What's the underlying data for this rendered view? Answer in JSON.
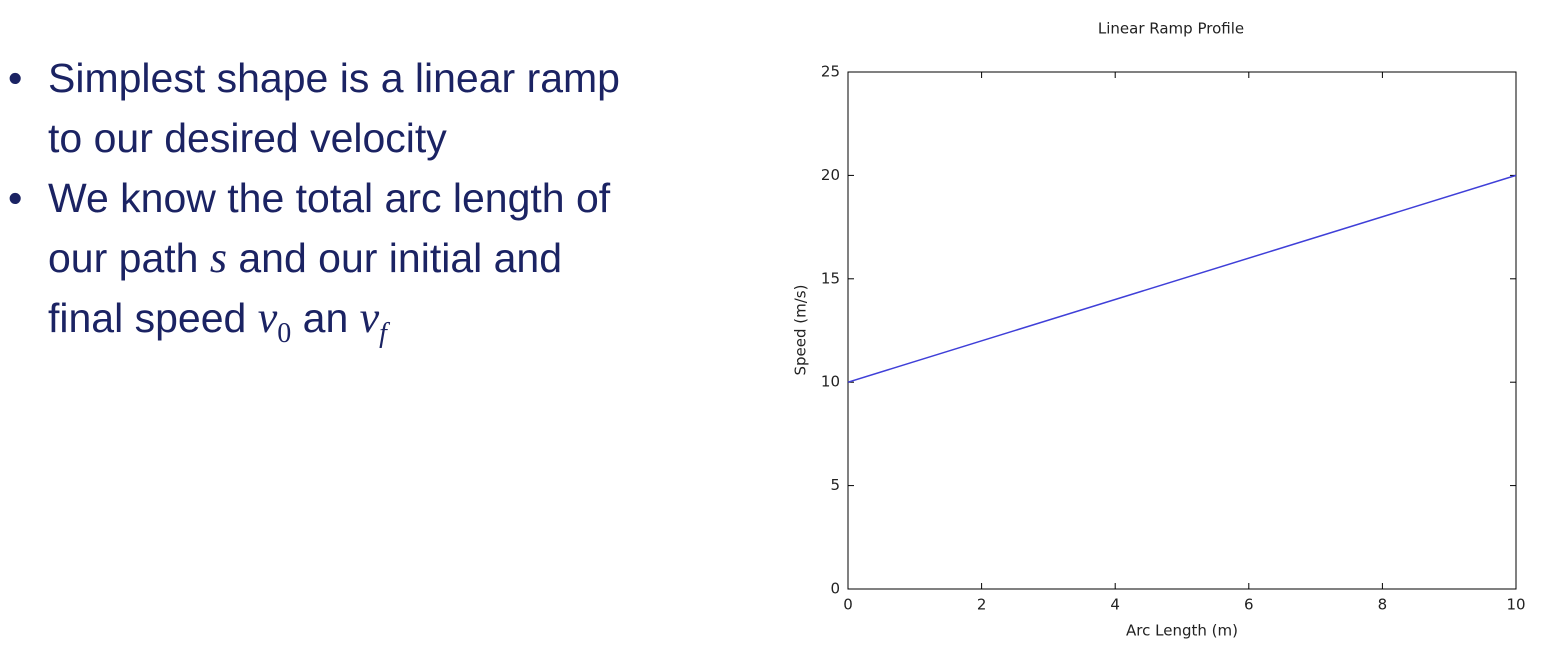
{
  "bullets": [
    {
      "lines": [
        [
          "Simplest shape is a linear ramp"
        ],
        [
          "to our desired velocity"
        ]
      ]
    },
    {
      "lines": [
        [
          "We know the total arc length of"
        ],
        [
          "our path ",
          {
            "math": "s"
          },
          " and our initial and"
        ],
        [
          "final speed ",
          {
            "math": "v",
            "sub": "0"
          },
          " an ",
          {
            "math": "v",
            "sub": "f"
          }
        ]
      ]
    }
  ],
  "chart_data": {
    "type": "line",
    "title": "Linear Ramp Profile",
    "x_label": "Arc Length (m)",
    "y_label": "Speed (m/s)",
    "x": [
      0,
      10
    ],
    "series": [
      {
        "color": "#3f3fd8",
        "values": [
          10,
          20
        ]
      }
    ],
    "xlim": [
      0,
      10
    ],
    "ylim": [
      0,
      25
    ],
    "xticks": [
      0,
      2,
      4,
      6,
      8,
      10
    ],
    "yticks": [
      0,
      5,
      10,
      15,
      20,
      25
    ],
    "grid": false
  }
}
